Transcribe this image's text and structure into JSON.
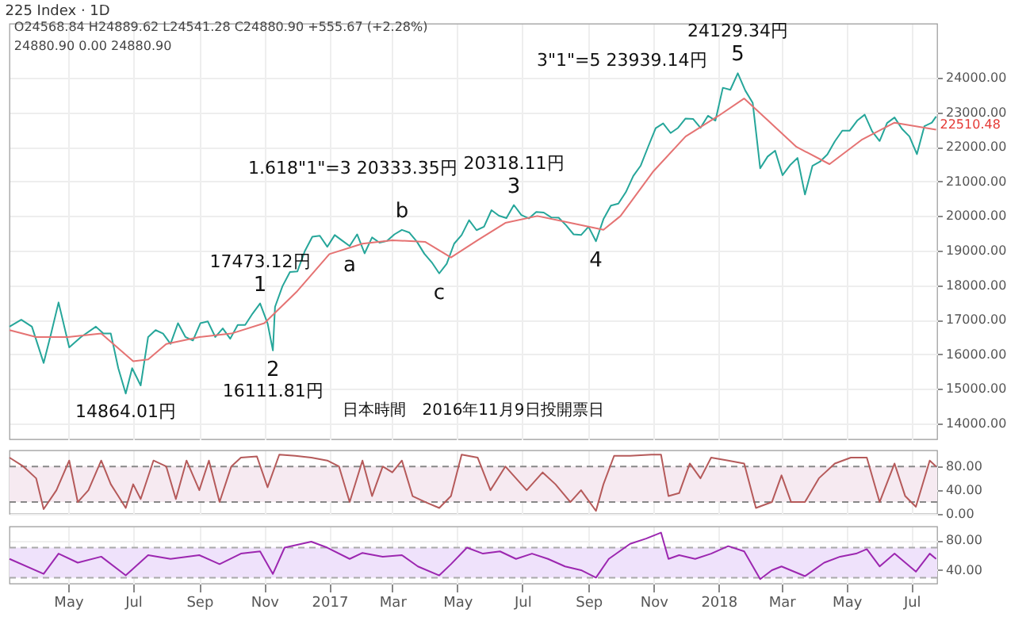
{
  "chart_data": [
    {
      "type": "line",
      "title": "225 Index · 1D",
      "grid": true,
      "tick_labels": "y",
      "xlim": [
        "2016-03-07",
        "2018-07-25"
      ],
      "xticks": [
        {
          "value": "2016-05-01",
          "label": null
        },
        {
          "value": "2016-07-01",
          "label": null
        },
        {
          "value": "2016-09-01",
          "label": null
        },
        {
          "value": "2016-11-01",
          "label": null
        },
        {
          "value": "2017-01-01",
          "label": null
        },
        {
          "value": "2017-03-01",
          "label": null
        },
        {
          "value": "2017-05-01",
          "label": null
        },
        {
          "value": "2017-07-01",
          "label": null
        },
        {
          "value": "2017-09-01",
          "label": null
        },
        {
          "value": "2017-11-01",
          "label": null
        },
        {
          "value": "2018-01-01",
          "label": null
        },
        {
          "value": "2018-03-01",
          "label": null
        },
        {
          "value": "2018-05-01",
          "label": null
        },
        {
          "value": "2018-07-01",
          "label": null
        }
      ],
      "ylim": [
        13540,
        25560
      ],
      "yticks": [
        {
          "value": 14000,
          "label": "14000.00"
        },
        {
          "value": 15000,
          "label": "15000.00"
        },
        {
          "value": 16000,
          "label": "16000.00"
        },
        {
          "value": 17000,
          "label": "17000.00"
        },
        {
          "value": 18000,
          "label": "18000.00"
        },
        {
          "value": 19000,
          "label": "19000.00"
        },
        {
          "value": 20000,
          "label": "20000.00"
        },
        {
          "value": 21000,
          "label": "21000.00"
        },
        {
          "value": 22000,
          "label": "22000.00"
        },
        {
          "value": 23000,
          "label": "23000.00"
        },
        {
          "value": 24000,
          "label": "24000.00"
        }
      ],
      "series": [
        {
          "color": "#26a69a",
          "x": [
            "2016-03-07",
            "2016-03-18",
            "2016-03-28",
            "2016-04-08",
            "2016-04-15",
            "2016-04-22",
            "2016-05-02",
            "2016-05-13",
            "2016-05-27",
            "2016-06-03",
            "2016-06-10",
            "2016-06-17",
            "2016-06-24",
            "2016-06-30",
            "2016-07-08",
            "2016-07-15",
            "2016-07-22",
            "2016-07-29",
            "2016-08-05",
            "2016-08-12",
            "2016-08-19",
            "2016-08-26",
            "2016-09-02",
            "2016-09-09",
            "2016-09-16",
            "2016-09-23",
            "2016-09-30",
            "2016-10-07",
            "2016-10-14",
            "2016-10-21",
            "2016-10-28",
            "2016-11-04",
            "2016-11-09",
            "2016-11-11",
            "2016-11-18",
            "2016-11-25",
            "2016-12-02",
            "2016-12-09",
            "2016-12-16",
            "2016-12-23",
            "2016-12-30",
            "2017-01-06",
            "2017-01-13",
            "2017-01-20",
            "2017-01-27",
            "2017-02-03",
            "2017-02-10",
            "2017-02-17",
            "2017-02-24",
            "2017-03-03",
            "2017-03-10",
            "2017-03-17",
            "2017-03-24",
            "2017-03-31",
            "2017-04-07",
            "2017-04-14",
            "2017-04-21",
            "2017-04-28",
            "2017-05-05",
            "2017-05-12",
            "2017-05-19",
            "2017-05-26",
            "2017-06-02",
            "2017-06-09",
            "2017-06-16",
            "2017-06-23",
            "2017-06-30",
            "2017-07-07",
            "2017-07-14",
            "2017-07-21",
            "2017-07-28",
            "2017-08-04",
            "2017-08-11",
            "2017-08-18",
            "2017-08-25",
            "2017-09-01",
            "2017-09-08",
            "2017-09-15",
            "2017-09-22",
            "2017-09-29",
            "2017-10-06",
            "2017-10-13",
            "2017-10-20",
            "2017-10-27",
            "2017-11-03",
            "2017-11-10",
            "2017-11-17",
            "2017-11-24",
            "2017-12-01",
            "2017-12-08",
            "2017-12-15",
            "2017-12-22",
            "2017-12-29",
            "2018-01-05",
            "2018-01-12",
            "2018-01-19",
            "2018-01-26",
            "2018-02-02",
            "2018-02-09",
            "2018-02-16",
            "2018-02-23",
            "2018-03-02",
            "2018-03-09",
            "2018-03-16",
            "2018-03-23",
            "2018-03-30",
            "2018-04-06",
            "2018-04-13",
            "2018-04-20",
            "2018-04-27",
            "2018-05-04",
            "2018-05-11",
            "2018-05-18",
            "2018-05-25",
            "2018-06-01",
            "2018-06-08",
            "2018-06-15",
            "2018-06-22",
            "2018-06-29",
            "2018-07-06",
            "2018-07-13",
            "2018-07-20",
            "2018-07-24"
          ],
          "values": [
            16800,
            17000,
            16800,
            15750,
            16600,
            17500,
            16200,
            16500,
            16800,
            16600,
            16600,
            15600,
            14864.01,
            15600,
            15100,
            16500,
            16700,
            16600,
            16300,
            16900,
            16500,
            16400,
            16900,
            16950,
            16500,
            16750,
            16450,
            16850,
            16850,
            17180,
            17473.12,
            16900,
            16111.81,
            17370,
            17970,
            18380,
            18400,
            18990,
            19400,
            19430,
            19110,
            19450,
            19290,
            19130,
            19470,
            18920,
            19380,
            19230,
            19280,
            19470,
            19600,
            19520,
            19260,
            18910,
            18660,
            18340,
            18620,
            19200,
            19450,
            19880,
            19590,
            19690,
            20170,
            20010,
            19940,
            20318.11,
            20030,
            19930,
            20120,
            20100,
            19960,
            19950,
            19730,
            19470,
            19450,
            19690,
            19270,
            19910,
            20300,
            20360,
            20690,
            21160,
            21460,
            22010,
            22540,
            22680,
            22400,
            22550,
            22820,
            22810,
            22550,
            22900,
            22760,
            23710,
            23650,
            24129.34,
            23630,
            23270,
            21380,
            21720,
            21890,
            21180,
            21470,
            21680,
            20620,
            21450,
            21570,
            21780,
            22160,
            22470,
            22470,
            22760,
            22930,
            22450,
            22170,
            22690,
            22850,
            22520,
            22300,
            21790,
            22600,
            22700,
            22880
          ]
        },
        {
          "color": "#e57373",
          "x": [
            "2016-03-07",
            "2016-04-01",
            "2016-05-01",
            "2016-06-01",
            "2016-07-01",
            "2016-07-15",
            "2016-08-01",
            "2016-09-01",
            "2016-10-01",
            "2016-11-01",
            "2016-12-01",
            "2017-01-01",
            "2017-02-01",
            "2017-03-01",
            "2017-04-01",
            "2017-04-25",
            "2017-05-20",
            "2017-06-15",
            "2017-07-15",
            "2017-08-15",
            "2017-09-15",
            "2017-10-01",
            "2017-11-01",
            "2017-12-01",
            "2018-01-01",
            "2018-01-25",
            "2018-02-15",
            "2018-03-15",
            "2018-04-15",
            "2018-05-15",
            "2018-06-15",
            "2018-07-24"
          ],
          "values": [
            16700,
            16500,
            16500,
            16600,
            15800,
            15850,
            16300,
            16500,
            16600,
            16900,
            17800,
            18900,
            19200,
            19300,
            19250,
            18800,
            19300,
            19800,
            20000,
            19800,
            19600,
            20000,
            21300,
            22300,
            22900,
            23400,
            22800,
            22000,
            21500,
            22200,
            22700,
            22500
          ]
        }
      ],
      "annotations": [
        "O24568.84 H24889.62 L24541.28 C24880.90 +555.67 (+2.28%)",
        "24880.90  0.00  24880.90",
        "22510.48",
        "3\"1\"=5 23939.14円",
        "1.618\"1\"=3 20333.35円",
        "日本時間　2016年11月9日投開票日",
        {
          "text": "5",
          "x": "2018-01-19",
          "y": 24129.34
        },
        {
          "text": "24129.34円",
          "x": "2018-01-19",
          "y": 24129.34
        },
        {
          "text": "3",
          "x": "2017-06-23",
          "y": 20318.11
        },
        {
          "text": "20318.11円",
          "x": "2017-06-23",
          "y": 20318.11
        },
        {
          "text": "b",
          "x": "2017-03-10",
          "y": 19600
        },
        {
          "text": "a",
          "x": "2017-01-20",
          "y": 19130
        },
        {
          "text": "c",
          "x": "2017-04-14",
          "y": 18340
        },
        {
          "text": "4",
          "x": "2017-09-08",
          "y": 19270
        },
        {
          "text": "1",
          "x": "2016-10-28",
          "y": 17473.12
        },
        {
          "text": "17473.12円",
          "x": "2016-10-28",
          "y": 17473.12
        },
        {
          "text": "2",
          "x": "2016-11-09",
          "y": 16111.81
        },
        {
          "text": "16111.81円",
          "x": "2016-11-09",
          "y": 16111.81
        },
        {
          "text": "14864.01円",
          "x": "2016-06-24",
          "y": 14864.01
        }
      ]
    },
    {
      "type": "line",
      "grid": true,
      "tick_labels": "y",
      "xlim": [
        "2016-03-07",
        "2018-07-25"
      ],
      "xticks": [
        {
          "value": "2016-05-01",
          "label": null
        },
        {
          "value": "2016-07-01",
          "label": null
        },
        {
          "value": "2016-09-01",
          "label": null
        },
        {
          "value": "2016-11-01",
          "label": null
        },
        {
          "value": "2017-01-01",
          "label": null
        },
        {
          "value": "2017-03-01",
          "label": null
        },
        {
          "value": "2017-05-01",
          "label": null
        },
        {
          "value": "2017-07-01",
          "label": null
        },
        {
          "value": "2017-09-01",
          "label": null
        },
        {
          "value": "2017-11-01",
          "label": null
        },
        {
          "value": "2018-01-01",
          "label": null
        },
        {
          "value": "2018-03-01",
          "label": null
        },
        {
          "value": "2018-05-01",
          "label": null
        },
        {
          "value": "2018-07-01",
          "label": null
        }
      ],
      "ylim": [
        0,
        107
      ],
      "yticks": [
        {
          "value": 0,
          "label": "0.00"
        },
        {
          "value": 40,
          "label": "40.00"
        },
        {
          "value": 80,
          "label": "80.00"
        }
      ],
      "bands": [
        {
          "axis": "y",
          "from": 20,
          "to": 80,
          "color": "#f6eaf1"
        }
      ],
      "ref_lines": [
        {
          "axis": "y",
          "value": 80,
          "line_style": "dashed",
          "color": "#888888"
        },
        {
          "axis": "y",
          "value": 20,
          "line_style": "dashed",
          "color": "#888888"
        }
      ],
      "series": [
        {
          "color": "#b55a5a",
          "x": [
            "2016-03-07",
            "2016-03-20",
            "2016-04-01",
            "2016-04-08",
            "2016-04-20",
            "2016-05-02",
            "2016-05-10",
            "2016-05-20",
            "2016-06-01",
            "2016-06-10",
            "2016-06-17",
            "2016-06-24",
            "2016-07-01",
            "2016-07-08",
            "2016-07-20",
            "2016-08-01",
            "2016-08-10",
            "2016-08-20",
            "2016-09-01",
            "2016-09-10",
            "2016-09-20",
            "2016-10-01",
            "2016-10-10",
            "2016-10-25",
            "2016-11-04",
            "2016-11-15",
            "2016-11-30",
            "2016-12-15",
            "2016-12-30",
            "2017-01-10",
            "2017-01-20",
            "2017-02-01",
            "2017-02-10",
            "2017-02-20",
            "2017-03-01",
            "2017-03-10",
            "2017-03-20",
            "2017-04-01",
            "2017-04-14",
            "2017-04-25",
            "2017-05-05",
            "2017-05-20",
            "2017-06-01",
            "2017-06-15",
            "2017-06-25",
            "2017-07-05",
            "2017-07-20",
            "2017-08-01",
            "2017-08-15",
            "2017-08-25",
            "2017-09-08",
            "2017-09-15",
            "2017-09-25",
            "2017-10-10",
            "2017-10-30",
            "2017-11-08",
            "2017-11-15",
            "2017-11-25",
            "2017-12-05",
            "2017-12-15",
            "2017-12-25",
            "2018-01-10",
            "2018-01-25",
            "2018-02-05",
            "2018-02-20",
            "2018-03-01",
            "2018-03-10",
            "2018-03-23",
            "2018-04-05",
            "2018-04-20",
            "2018-05-05",
            "2018-05-20",
            "2018-06-01",
            "2018-06-15",
            "2018-06-25",
            "2018-07-05",
            "2018-07-18",
            "2018-07-24"
          ],
          "values": [
            95,
            80,
            60,
            8,
            40,
            90,
            20,
            40,
            90,
            50,
            30,
            10,
            50,
            25,
            90,
            80,
            25,
            90,
            40,
            90,
            20,
            80,
            95,
            97,
            45,
            100,
            98,
            95,
            90,
            80,
            20,
            90,
            30,
            80,
            70,
            90,
            30,
            20,
            10,
            30,
            100,
            95,
            40,
            80,
            60,
            40,
            70,
            50,
            20,
            40,
            5,
            50,
            98,
            98,
            100,
            100,
            30,
            35,
            85,
            60,
            95,
            90,
            85,
            10,
            20,
            65,
            20,
            20,
            60,
            85,
            95,
            95,
            20,
            85,
            30,
            12,
            90,
            80
          ]
        }
      ]
    },
    {
      "type": "line",
      "grid": true,
      "xlim": [
        "2016-03-07",
        "2018-07-25"
      ],
      "xticks": [
        {
          "value": "2016-05-01",
          "label": "May"
        },
        {
          "value": "2016-07-01",
          "label": "Jul"
        },
        {
          "value": "2016-09-01",
          "label": "Sep"
        },
        {
          "value": "2016-11-01",
          "label": "Nov"
        },
        {
          "value": "2017-01-01",
          "label": "2017"
        },
        {
          "value": "2017-03-01",
          "label": "Mar"
        },
        {
          "value": "2017-05-01",
          "label": "May"
        },
        {
          "value": "2017-07-01",
          "label": "Jul"
        },
        {
          "value": "2017-09-01",
          "label": "Sep"
        },
        {
          "value": "2017-11-01",
          "label": "Nov"
        },
        {
          "value": "2018-01-01",
          "label": "2018"
        },
        {
          "value": "2018-03-01",
          "label": "Mar"
        },
        {
          "value": "2018-05-01",
          "label": "May"
        },
        {
          "value": "2018-07-01",
          "label": "Jul"
        }
      ],
      "ylim": [
        22,
        98
      ],
      "yticks": [
        {
          "value": 40,
          "label": "40.00"
        },
        {
          "value": 80,
          "label": "80.00"
        }
      ],
      "bands": [
        {
          "axis": "y",
          "from": 30,
          "to": 70,
          "color": "#efe2fb"
        }
      ],
      "ref_lines": [
        {
          "axis": "y",
          "value": 70,
          "line_style": "dashed",
          "color": "#aaaaaa"
        },
        {
          "axis": "y",
          "value": 30,
          "line_style": "dashed",
          "color": "#aaaaaa"
        }
      ],
      "series": [
        {
          "color": "#9c27b0",
          "x": [
            "2016-03-07",
            "2016-04-08",
            "2016-04-22",
            "2016-05-10",
            "2016-06-01",
            "2016-06-24",
            "2016-07-15",
            "2016-08-05",
            "2016-09-01",
            "2016-09-20",
            "2016-10-10",
            "2016-10-28",
            "2016-11-09",
            "2016-11-20",
            "2016-12-15",
            "2016-12-30",
            "2017-01-20",
            "2017-02-01",
            "2017-02-20",
            "2017-03-10",
            "2017-03-25",
            "2017-04-14",
            "2017-04-25",
            "2017-05-10",
            "2017-05-25",
            "2017-06-10",
            "2017-06-25",
            "2017-07-10",
            "2017-07-25",
            "2017-08-10",
            "2017-08-25",
            "2017-09-08",
            "2017-09-20",
            "2017-10-10",
            "2017-10-25",
            "2017-11-08",
            "2017-11-15",
            "2017-11-25",
            "2017-12-10",
            "2017-12-25",
            "2018-01-10",
            "2018-01-25",
            "2018-02-09",
            "2018-02-20",
            "2018-03-01",
            "2018-03-23",
            "2018-04-10",
            "2018-04-25",
            "2018-05-10",
            "2018-05-20",
            "2018-06-01",
            "2018-06-15",
            "2018-07-05",
            "2018-07-18",
            "2018-07-24"
          ],
          "values": [
            55,
            35,
            62,
            50,
            58,
            33,
            60,
            55,
            60,
            48,
            62,
            65,
            35,
            70,
            78,
            70,
            55,
            63,
            58,
            60,
            45,
            33,
            48,
            70,
            62,
            65,
            55,
            62,
            55,
            45,
            40,
            30,
            55,
            75,
            82,
            90,
            55,
            60,
            55,
            62,
            72,
            65,
            28,
            40,
            45,
            32,
            50,
            58,
            62,
            68,
            45,
            62,
            38,
            62,
            55
          ]
        }
      ]
    }
  ]
}
